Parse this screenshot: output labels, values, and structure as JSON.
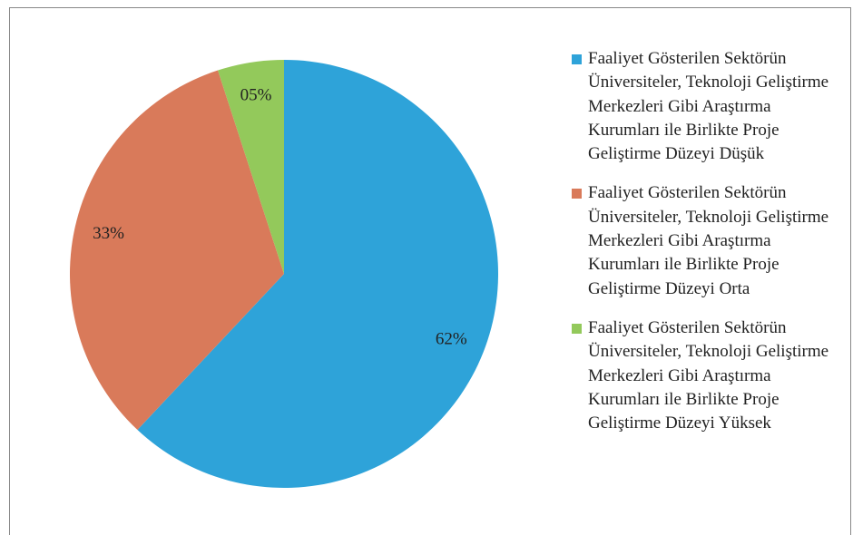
{
  "chart_data": {
    "type": "pie",
    "categories": [
      "Faaliyet Gösterilen Sektörün Üniversiteler, Teknoloji Geliştirme Merkezleri Gibi Araştırma Kurumları ile Birlikte Proje Geliştirme Düzeyi Düşük",
      "Faaliyet Gösterilen Sektörün Üniversiteler, Teknoloji Geliştirme Merkezleri Gibi Araştırma Kurumları ile Birlikte Proje Geliştirme Düzeyi Orta",
      "Faaliyet Gösterilen Sektörün Üniversiteler, Teknoloji Geliştirme Merkezleri Gibi Araştırma Kurumları ile Birlikte Proje Geliştirme Düzeyi Yüksek"
    ],
    "values": [
      62,
      33,
      5
    ],
    "value_labels": [
      "62%",
      "33%",
      "05%"
    ],
    "colors": [
      "#2ea3d9",
      "#d97a5a",
      "#93c95b"
    ],
    "legend": "right"
  }
}
